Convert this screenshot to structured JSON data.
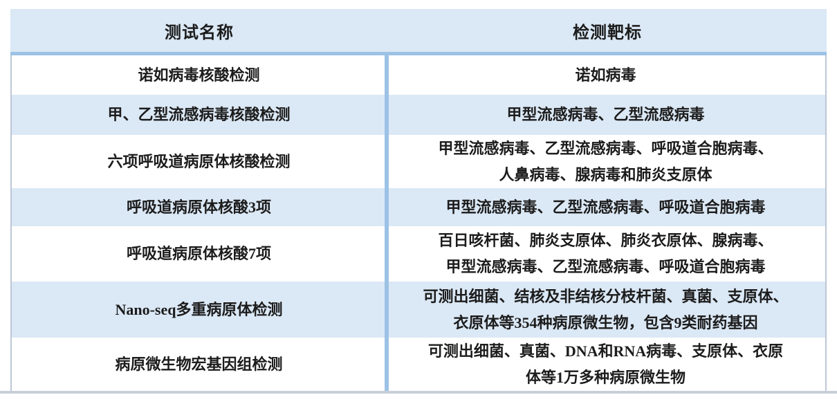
{
  "colors": {
    "header_fill": "#dbe8f5",
    "band_fill": "#dbe8f5",
    "rule_blue": "#9cc2e5",
    "border_gray": "#bdc7d5",
    "text_color": "#1c1c1c",
    "page_bg": "#ffffff"
  },
  "table": {
    "columns": [
      {
        "label": "测试名称"
      },
      {
        "label": "检测靶标"
      }
    ],
    "rows": [
      {
        "name": "诺如病毒核酸检测",
        "target": "诺如病毒"
      },
      {
        "name": "甲、乙型流感病毒核酸检测",
        "target": "甲型流感病毒、乙型流感病毒"
      },
      {
        "name": "六项呼吸道病原体核酸检测",
        "target": [
          "甲型流感病毒、乙型流感病毒、呼吸道合胞病毒、",
          "人鼻病毒、腺病毒和肺炎支原体"
        ]
      },
      {
        "name": "呼吸道病原体核酸3项",
        "target": "甲型流感病毒、乙型流感病毒、呼吸道合胞病毒"
      },
      {
        "name": "呼吸道病原体核酸7项",
        "target": [
          "百日咳杆菌、肺炎支原体、肺炎衣原体、腺病毒、",
          "甲型流感病毒、乙型流感病毒、呼吸道合胞病毒"
        ]
      },
      {
        "name": "Nano-seq多重病原体检测",
        "target": [
          "可测出细菌、结核及非结核分枝杆菌、真菌、支原体、",
          "衣原体等354种病原微生物，包含9类耐药基因"
        ]
      },
      {
        "name": "病原微生物宏基因组检测",
        "target": [
          "可测出细菌、真菌、DNA和RNA病毒、支原体、衣原",
          "体等1万多种病原微生物"
        ]
      }
    ]
  }
}
